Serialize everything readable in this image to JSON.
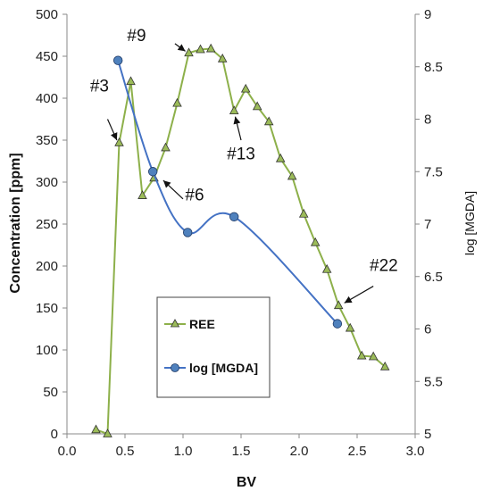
{
  "chart_data": {
    "type": "line",
    "xlabel": "BV",
    "ylabel": "Concentration  [ppm]",
    "y2label": "log [MGDA]",
    "xlim": [
      0.0,
      3.0
    ],
    "ylim": [
      0,
      500
    ],
    "y2lim": [
      5,
      9
    ],
    "xticks": [
      "0.0",
      "0.5",
      "1.0",
      "1.5",
      "2.0",
      "2.5",
      "3.0"
    ],
    "yticks": [
      "0",
      "50",
      "100",
      "150",
      "200",
      "250",
      "300",
      "350",
      "400",
      "450",
      "500"
    ],
    "y2ticks": [
      "5",
      "5.5",
      "6",
      "6.5",
      "7",
      "7.5",
      "8",
      "8.5",
      "9"
    ],
    "grid": false,
    "legend_position": "bottom-center",
    "series": [
      {
        "name": "REE",
        "axis": "left",
        "color": "#8db04a",
        "marker": "triangle",
        "marker_fill": "#9bbb59",
        "x": [
          0.25,
          0.35,
          0.45,
          0.55,
          0.65,
          0.75,
          0.85,
          0.95,
          1.05,
          1.15,
          1.24,
          1.34,
          1.44,
          1.54,
          1.64,
          1.74,
          1.84,
          1.94,
          2.04,
          2.14,
          2.24,
          2.34,
          2.44,
          2.54,
          2.64,
          2.74
        ],
        "y": [
          5,
          0,
          347,
          420,
          284,
          305,
          341,
          394,
          454,
          458,
          459,
          447,
          385,
          411,
          390,
          372,
          328,
          307,
          262,
          228,
          196,
          153,
          126,
          93,
          92,
          80
        ]
      },
      {
        "name": "log [MGDA]",
        "axis": "right",
        "color": "#4472c4",
        "marker": "circle",
        "marker_fill": "#4f81bd",
        "x": [
          0.44,
          0.74,
          1.04,
          1.44,
          2.33
        ],
        "y": [
          8.56,
          7.5,
          6.92,
          7.07,
          6.05
        ]
      }
    ],
    "annotations": [
      {
        "text": "#3",
        "label_x": 0.28,
        "label_y": 408,
        "arrow_from": [
          0.35,
          375
        ],
        "arrow_to": [
          0.43,
          350
        ]
      },
      {
        "text": "#9",
        "label_x": 0.6,
        "label_y": 468,
        "arrow_from": [
          0.93,
          465
        ],
        "arrow_to": [
          1.02,
          456
        ]
      },
      {
        "text": "#6",
        "label_x": 1.1,
        "label_y": 278,
        "arrow_from": [
          1.0,
          280
        ],
        "arrow_to": [
          0.83,
          302
        ]
      },
      {
        "text": "#13",
        "label_x": 1.5,
        "label_y": 327,
        "arrow_from": [
          1.5,
          350
        ],
        "arrow_to": [
          1.45,
          378
        ]
      },
      {
        "text": "#22",
        "label_x": 2.73,
        "label_y": 194,
        "arrow_from": [
          2.64,
          176
        ],
        "arrow_to": [
          2.39,
          156
        ]
      }
    ]
  },
  "colors": {
    "ree_line": "#8db04a",
    "ree_marker": "#9bbb59",
    "mgda_line": "#4472c4",
    "mgda_marker": "#4f81bd",
    "axis": "#888888",
    "text": "#111111"
  }
}
